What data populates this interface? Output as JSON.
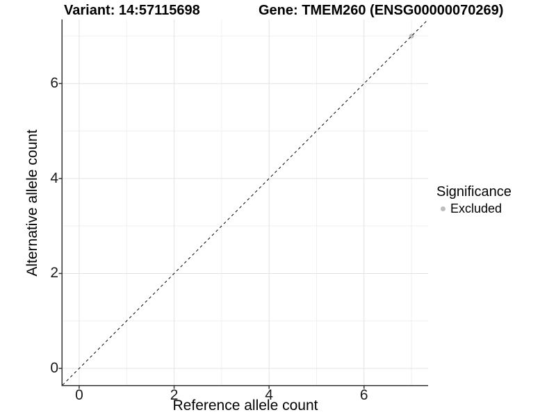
{
  "chart_data": {
    "type": "scatter",
    "titles": {
      "variant": "Variant: 14:57115698",
      "gene": "Gene: TMEM260 (ENSG00000070269)"
    },
    "xlabel": "Reference allele count",
    "ylabel": "Alternative allele count",
    "xlim": [
      -0.35,
      7.35
    ],
    "ylim": [
      -0.35,
      7.35
    ],
    "x_ticks": [
      0,
      2,
      4,
      6
    ],
    "y_ticks": [
      0,
      2,
      4,
      6
    ],
    "x_minor_gridlines": [
      1,
      3,
      5,
      7
    ],
    "y_minor_gridlines": [
      1,
      3,
      5,
      7
    ],
    "grid": true,
    "reference_line": {
      "type": "identity",
      "style": "dashed",
      "color": "#000000",
      "from": [
        -0.35,
        -0.35
      ],
      "to": [
        7.35,
        7.35
      ]
    },
    "series": [
      {
        "name": "Excluded",
        "color": "#bdbdbd",
        "points": [
          {
            "x": 7,
            "y": 7
          }
        ]
      }
    ],
    "legend": {
      "position": "right",
      "title": "Significance",
      "items": [
        {
          "label": "Excluded",
          "color": "#bdbdbd"
        }
      ]
    },
    "colors": {
      "background": "#ffffff",
      "grid_major": "#e3e3e3",
      "grid_minor": "#f0f0f0",
      "axis_line": "#333333",
      "tick_text": "#1a1a1a",
      "point": "#bdbdbd",
      "dashed_line": "#000000"
    }
  }
}
